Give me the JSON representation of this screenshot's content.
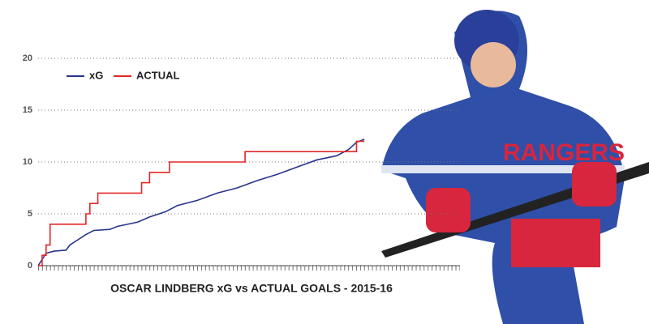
{
  "chart_data": {
    "type": "line",
    "title": "OSCAR LINDBERG xG vs ACTUAL GOALS - 2015-16",
    "xlim": [
      0,
      106
    ],
    "ylim": [
      0,
      20
    ],
    "yticks": [
      0,
      5,
      10,
      15,
      20
    ],
    "grid": true,
    "legend": "upper-left",
    "series": [
      {
        "name": "xG",
        "color": "#27348b",
        "step": false,
        "x": [
          0,
          2,
          4,
          7,
          8,
          10,
          12,
          14,
          18,
          20,
          25,
          28,
          32,
          35,
          40,
          45,
          50,
          55,
          60,
          65,
          70,
          75,
          78,
          80,
          82
        ],
        "values": [
          0,
          1.2,
          1.4,
          1.5,
          2,
          2.5,
          3,
          3.4,
          3.5,
          3.8,
          4.2,
          4.7,
          5.2,
          5.8,
          6.3,
          7,
          7.5,
          8.2,
          8.8,
          9.5,
          10.2,
          10.6,
          11.2,
          11.9,
          12.2
        ]
      },
      {
        "name": "ACTUAL",
        "color": "#e32626",
        "step": true,
        "x": [
          0,
          1,
          2,
          3,
          12,
          13,
          15,
          26,
          28,
          33,
          52,
          80,
          82
        ],
        "values": [
          0,
          1,
          2,
          4,
          5,
          6,
          7,
          8,
          9,
          10,
          11,
          12,
          12
        ]
      }
    ]
  }
}
